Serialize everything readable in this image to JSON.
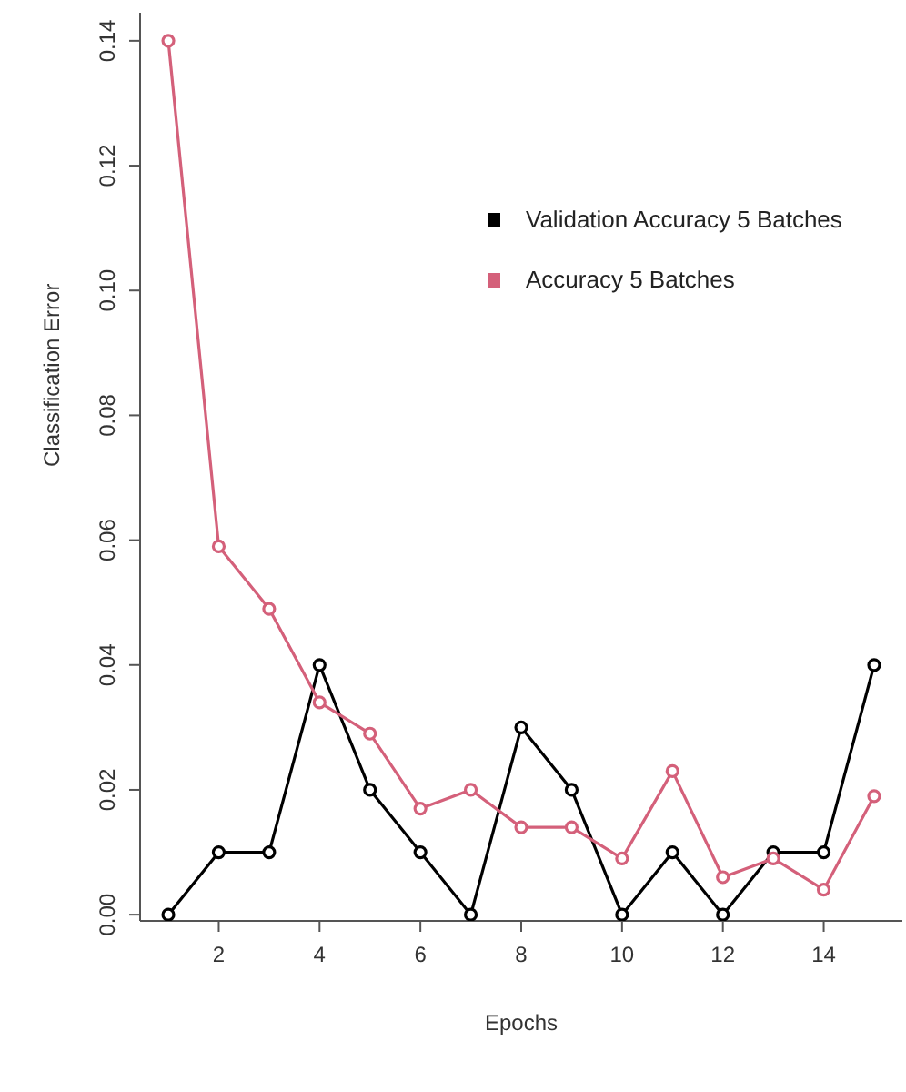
{
  "chart_data": {
    "type": "line",
    "xlabel": "Epochs",
    "ylabel": "Classification Error",
    "x": [
      1,
      2,
      3,
      4,
      5,
      6,
      7,
      8,
      9,
      10,
      11,
      12,
      13,
      14,
      15
    ],
    "series": [
      {
        "name": "Validation Accuracy 5 Batches",
        "color": "#000000",
        "values": [
          0,
          0.01,
          0.01,
          0.04,
          0.02,
          0.01,
          0,
          0.03,
          0.02,
          0,
          0.01,
          0,
          0.01,
          0.01,
          0.04
        ]
      },
      {
        "name": "Accuracy 5 Batches",
        "color": "#d4607a",
        "values": [
          0.14,
          0.059,
          0.049,
          0.034,
          0.029,
          0.017,
          0.02,
          0.014,
          0.014,
          0.009,
          0.023,
          0.006,
          0.009,
          0.004,
          0.019
        ]
      }
    ],
    "xlim": [
      0.44,
      15.56
    ],
    "xticks": [
      2,
      4,
      6,
      8,
      10,
      12,
      14
    ],
    "ylim": [
      -0.001,
      0.1445
    ],
    "yticks": [
      {
        "value": 0,
        "label": "0.00"
      },
      {
        "value": 0.02,
        "label": "0.02"
      },
      {
        "value": 0.04,
        "label": "0.04"
      },
      {
        "value": 0.06,
        "label": "0.06"
      },
      {
        "value": 0.08,
        "label": "0.08"
      },
      {
        "value": 0.1,
        "label": "0.10"
      },
      {
        "value": 0.12,
        "label": "0.12"
      },
      {
        "value": 0.14,
        "label": "0.14"
      }
    ],
    "legend": "top right",
    "marker": "circle",
    "line_style": "solid",
    "grid": false
  }
}
